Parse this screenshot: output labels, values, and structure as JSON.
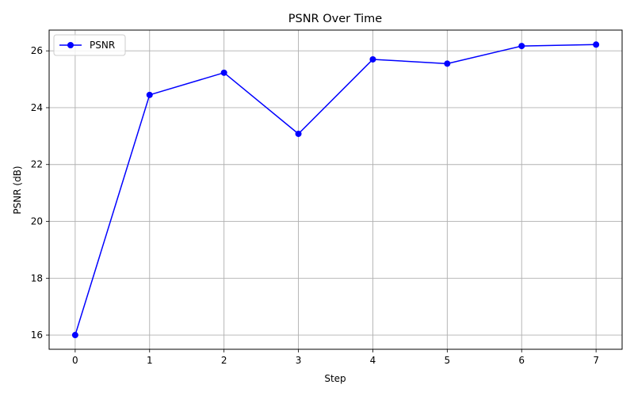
{
  "chart_data": {
    "type": "line",
    "title": "PSNR Over Time",
    "xlabel": "Step",
    "ylabel": "PSNR (dB)",
    "x": [
      0,
      1,
      2,
      3,
      4,
      5,
      6,
      7
    ],
    "series": [
      {
        "name": "PSNR",
        "values": [
          16.0,
          24.45,
          25.23,
          23.08,
          25.7,
          25.55,
          26.17,
          26.22
        ],
        "color": "#0000ff",
        "marker": "circle"
      }
    ],
    "xlim": [
      -0.35,
      7.35
    ],
    "ylim": [
      15.5,
      26.73
    ],
    "xticks": [
      0,
      1,
      2,
      3,
      4,
      5,
      6,
      7
    ],
    "yticks": [
      16,
      18,
      20,
      22,
      24,
      26
    ],
    "grid": true,
    "legend_position": "upper-left"
  }
}
